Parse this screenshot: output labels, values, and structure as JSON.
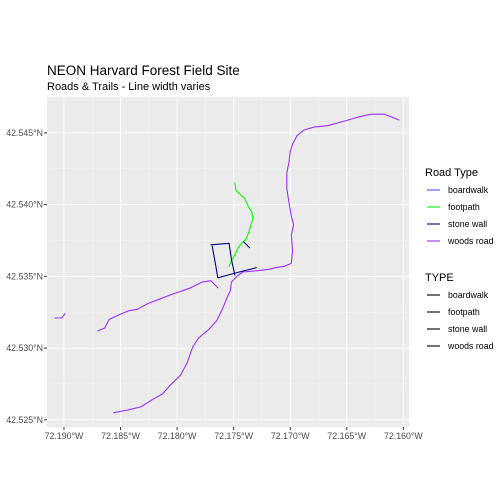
{
  "chart_data": {
    "type": "line",
    "title": "NEON Harvard Forest Field Site",
    "subtitle": "Roads & Trails - Line width varies",
    "xlabel": "",
    "ylabel": "",
    "xlim": [
      -72.1915,
      -72.1595
    ],
    "ylim": [
      42.5245,
      42.5475
    ],
    "x_ticks": [
      -72.19,
      -72.185,
      -72.18,
      -72.175,
      -72.17,
      -72.165,
      -72.16
    ],
    "x_tick_labels": [
      "72.190°W",
      "72.185°W",
      "72.180°W",
      "72.175°W",
      "72.170°W",
      "72.165°W",
      "72.160°W"
    ],
    "y_ticks": [
      42.525,
      42.53,
      42.535,
      42.54,
      42.545
    ],
    "y_tick_labels": [
      "42.525°N",
      "42.530°N",
      "42.535°N",
      "42.540°N",
      "42.545°N"
    ],
    "grid": true,
    "legend_position": "right",
    "legends": [
      {
        "title": "Road Type",
        "entries": [
          {
            "label": "boardwalk",
            "color": "#3d5cff"
          },
          {
            "label": "footpath",
            "color": "#00ff00"
          },
          {
            "label": "stone wall",
            "color": "#00008b"
          },
          {
            "label": "woods road",
            "color": "#9b30ff"
          }
        ]
      },
      {
        "title": "TYPE",
        "entries": [
          {
            "label": "boardwalk",
            "color": "#000000"
          },
          {
            "label": "footpath",
            "color": "#000000"
          },
          {
            "label": "stone wall",
            "color": "#000000"
          },
          {
            "label": "woods road",
            "color": "#000000"
          }
        ]
      }
    ],
    "series": [
      {
        "name": "woods road",
        "color": "#9b30ff",
        "segments": [
          [
            [
              -72.1908,
              42.5321
            ],
            [
              -72.1902,
              42.5321
            ],
            [
              -72.1899,
              42.5324
            ]
          ],
          [
            [
              -72.1856,
              42.5255
            ],
            [
              -72.1843,
              42.5257
            ],
            [
              -72.1832,
              42.5259
            ],
            [
              -72.1822,
              42.5264
            ],
            [
              -72.1813,
              42.5268
            ],
            [
              -72.1805,
              42.5275
            ],
            [
              -72.1797,
              42.5281
            ],
            [
              -72.1791,
              42.529
            ],
            [
              -72.1788,
              42.5297
            ],
            [
              -72.1786,
              42.5301
            ],
            [
              -72.1781,
              42.5307
            ],
            [
              -72.1772,
              42.5313
            ],
            [
              -72.1765,
              42.5319
            ],
            [
              -72.176,
              42.5327
            ],
            [
              -72.1756,
              42.5335
            ],
            [
              -72.1753,
              42.534
            ],
            [
              -72.1752,
              42.5346
            ],
            [
              -72.1747,
              42.535
            ],
            [
              -72.1742,
              42.5353
            ],
            [
              -72.1728,
              42.5354
            ],
            [
              -72.1718,
              42.5355
            ],
            [
              -72.1713,
              42.5356
            ],
            [
              -72.1705,
              42.5357
            ],
            [
              -72.1699,
              42.5359
            ],
            [
              -72.1698,
              42.5368
            ],
            [
              -72.1699,
              42.5379
            ],
            [
              -72.1697,
              42.5386
            ],
            [
              -72.1699,
              42.5392
            ],
            [
              -72.1701,
              42.5401
            ],
            [
              -72.1703,
              42.5411
            ],
            [
              -72.1703,
              42.5422
            ],
            [
              -72.1701,
              42.543
            ],
            [
              -72.17,
              42.5437
            ],
            [
              -72.1698,
              42.5442
            ],
            [
              -72.1694,
              42.5448
            ],
            [
              -72.1688,
              42.5452
            ],
            [
              -72.1679,
              42.5454
            ],
            [
              -72.1667,
              42.5455
            ],
            [
              -72.1653,
              42.5458
            ],
            [
              -72.164,
              42.5461
            ],
            [
              -72.1628,
              42.5463
            ],
            [
              -72.1617,
              42.5463
            ],
            [
              -72.161,
              42.5461
            ],
            [
              -72.1604,
              42.5459
            ]
          ],
          [
            [
              -72.187,
              42.5312
            ],
            [
              -72.1864,
              42.5314
            ],
            [
              -72.186,
              42.532
            ],
            [
              -72.1852,
              42.5323
            ],
            [
              -72.1843,
              42.5326
            ],
            [
              -72.1835,
              42.5327
            ],
            [
              -72.1826,
              42.5331
            ],
            [
              -72.1816,
              42.5334
            ],
            [
              -72.1803,
              42.5338
            ],
            [
              -72.1795,
              42.534
            ],
            [
              -72.1788,
              42.5342
            ],
            [
              -72.1778,
              42.5346
            ],
            [
              -72.177,
              42.5347
            ],
            [
              -72.1764,
              42.5342
            ]
          ]
        ]
      },
      {
        "name": "footpath",
        "color": "#00ff00",
        "segments": [
          [
            [
              -72.1749,
              42.5415
            ],
            [
              -72.1748,
              42.541
            ],
            [
              -72.1744,
              42.5407
            ],
            [
              -72.174,
              42.5404
            ],
            [
              -72.1738,
              42.54
            ],
            [
              -72.1734,
              42.5395
            ],
            [
              -72.1733,
              42.539
            ],
            [
              -72.1735,
              42.5385
            ],
            [
              -72.1737,
              42.538
            ],
            [
              -72.1739,
              42.5376
            ],
            [
              -72.1743,
              42.5373
            ],
            [
              -72.1746,
              42.537
            ],
            [
              -72.1749,
              42.5365
            ],
            [
              -72.1752,
              42.5361
            ],
            [
              -72.1754,
              42.5357
            ]
          ]
        ]
      },
      {
        "name": "stone wall",
        "color": "#00008b",
        "segments": [
          [
            [
              -72.177,
              42.5372
            ],
            [
              -72.1754,
              42.5373
            ],
            [
              -72.1752,
              42.5362
            ],
            [
              -72.1749,
              42.5351
            ]
          ],
          [
            [
              -72.1769,
              42.5371
            ],
            [
              -72.1766,
              42.5358
            ],
            [
              -72.1764,
              42.5349
            ],
            [
              -72.1745,
              42.5353
            ],
            [
              -72.173,
              42.5356
            ]
          ],
          [
            [
              -72.1741,
              42.5374
            ],
            [
              -72.1736,
              42.537
            ]
          ]
        ]
      }
    ]
  }
}
